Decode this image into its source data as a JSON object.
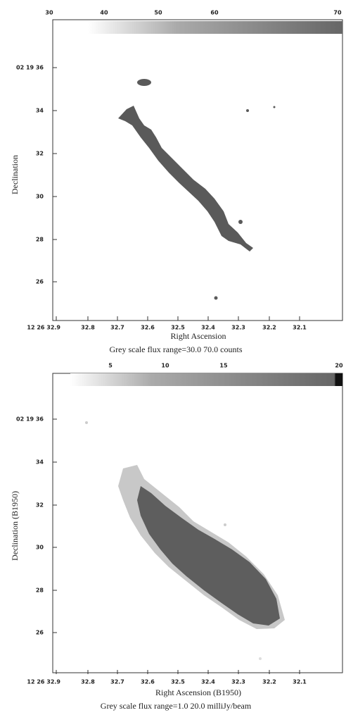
{
  "panels": [
    {
      "colorbar_ticks": [
        "30",
        "40",
        "50",
        "60",
        "70"
      ],
      "y_tick_labels": [
        "02 19 36",
        "34",
        "32",
        "30",
        "28",
        "26"
      ],
      "y_title": "Declination",
      "x_tick_labels": [
        "12 26 32.9",
        "32.8",
        "32.7",
        "32.6",
        "32.5",
        "32.4",
        "32.3",
        "32.2",
        "32.1"
      ],
      "x_title": "Right Ascension",
      "caption": "Grey scale flux range=30.0 70.0 counts"
    },
    {
      "colorbar_ticks": [
        "5",
        "10",
        "15",
        "20"
      ],
      "y_tick_labels": [
        "02 19 36",
        "34",
        "32",
        "30",
        "28",
        "26"
      ],
      "y_title": "Declination (B1950)",
      "x_tick_labels": [
        "12 26 32.9",
        "32.8",
        "32.7",
        "32.6",
        "32.5",
        "32.4",
        "32.3",
        "32.2",
        "32.1"
      ],
      "x_title": "Right Ascension (B1950)",
      "caption": "Grey scale flux range=1.0 20.0 milliJy/beam"
    }
  ]
}
